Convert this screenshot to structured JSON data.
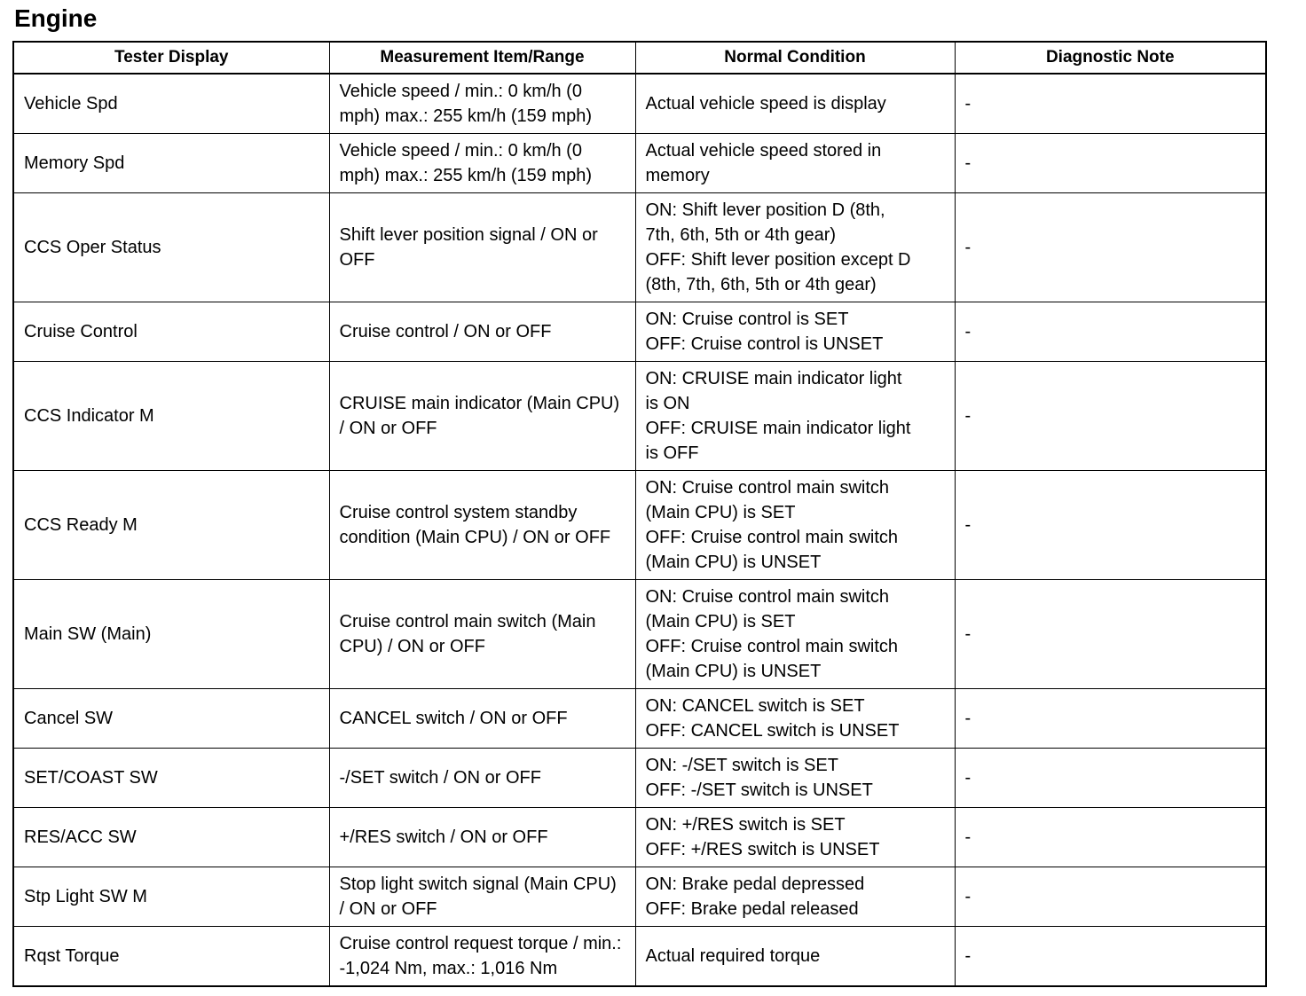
{
  "page_title": "Engine",
  "table": {
    "columns": [
      "Tester Display",
      "Measurement Item/Range",
      "Normal Condition",
      "Diagnostic Note"
    ],
    "column_keys": [
      "tester_display",
      "measurement",
      "normal_condition",
      "diagnostic_note"
    ],
    "rows": [
      {
        "tester_display": "Vehicle Spd",
        "measurement": "Vehicle speed / min.: 0 km/h (0 mph) max.: 255 km/h (159 mph)",
        "normal_condition": "Actual vehicle speed is display",
        "diagnostic_note": "-"
      },
      {
        "tester_display": "Memory Spd",
        "measurement": "Vehicle speed / min.: 0 km/h (0 mph) max.: 255 km/h (159 mph)",
        "normal_condition": "Actual vehicle speed stored in memory",
        "diagnostic_note": "-"
      },
      {
        "tester_display": "CCS Oper Status",
        "measurement": "Shift lever position signal / ON or OFF",
        "normal_condition": "ON: Shift lever position D (8th,\n7th, 6th, 5th or 4th gear)\nOFF: Shift lever position except D\n(8th, 7th, 6th, 5th or 4th gear)",
        "diagnostic_note": "-"
      },
      {
        "tester_display": "Cruise Control",
        "measurement": "Cruise control / ON or OFF",
        "normal_condition": "ON: Cruise control is SET\nOFF: Cruise control is UNSET",
        "diagnostic_note": "-"
      },
      {
        "tester_display": "CCS Indicator M",
        "measurement": "CRUISE main indicator (Main CPU) / ON or OFF",
        "normal_condition": "ON: CRUISE main indicator light\nis ON\nOFF: CRUISE main indicator light\nis OFF",
        "diagnostic_note": "-"
      },
      {
        "tester_display": "CCS Ready M",
        "measurement": "Cruise control system standby condition (Main CPU) / ON or OFF",
        "normal_condition": "ON: Cruise control main switch\n(Main CPU) is SET\nOFF: Cruise control main switch\n(Main CPU) is UNSET",
        "diagnostic_note": "-"
      },
      {
        "tester_display": "Main SW (Main)",
        "measurement": "Cruise control main switch (Main CPU) / ON or OFF",
        "normal_condition": "ON: Cruise control main switch\n(Main CPU) is SET\nOFF: Cruise control main switch\n(Main CPU) is UNSET",
        "diagnostic_note": "-"
      },
      {
        "tester_display": "Cancel SW",
        "measurement": "CANCEL switch / ON or OFF",
        "normal_condition": "ON: CANCEL switch is SET\nOFF: CANCEL switch is UNSET",
        "diagnostic_note": "-"
      },
      {
        "tester_display": "SET/COAST SW",
        "measurement": "-/SET switch / ON or OFF",
        "normal_condition": "ON: -/SET switch is SET\nOFF: -/SET switch is UNSET",
        "diagnostic_note": "-"
      },
      {
        "tester_display": "RES/ACC SW",
        "measurement": "+/RES switch / ON or OFF",
        "normal_condition": "ON: +/RES switch is SET\nOFF: +/RES switch is UNSET",
        "diagnostic_note": "-"
      },
      {
        "tester_display": "Stp Light SW M",
        "measurement": "Stop light switch signal (Main CPU) / ON or OFF",
        "normal_condition": "ON: Brake pedal depressed\nOFF: Brake pedal released",
        "diagnostic_note": "-"
      },
      {
        "tester_display": "Rqst Torque",
        "measurement": "Cruise control request torque / min.: -1,024 Nm, max.: 1,016 Nm",
        "normal_condition": "Actual required torque",
        "diagnostic_note": "-"
      }
    ]
  }
}
